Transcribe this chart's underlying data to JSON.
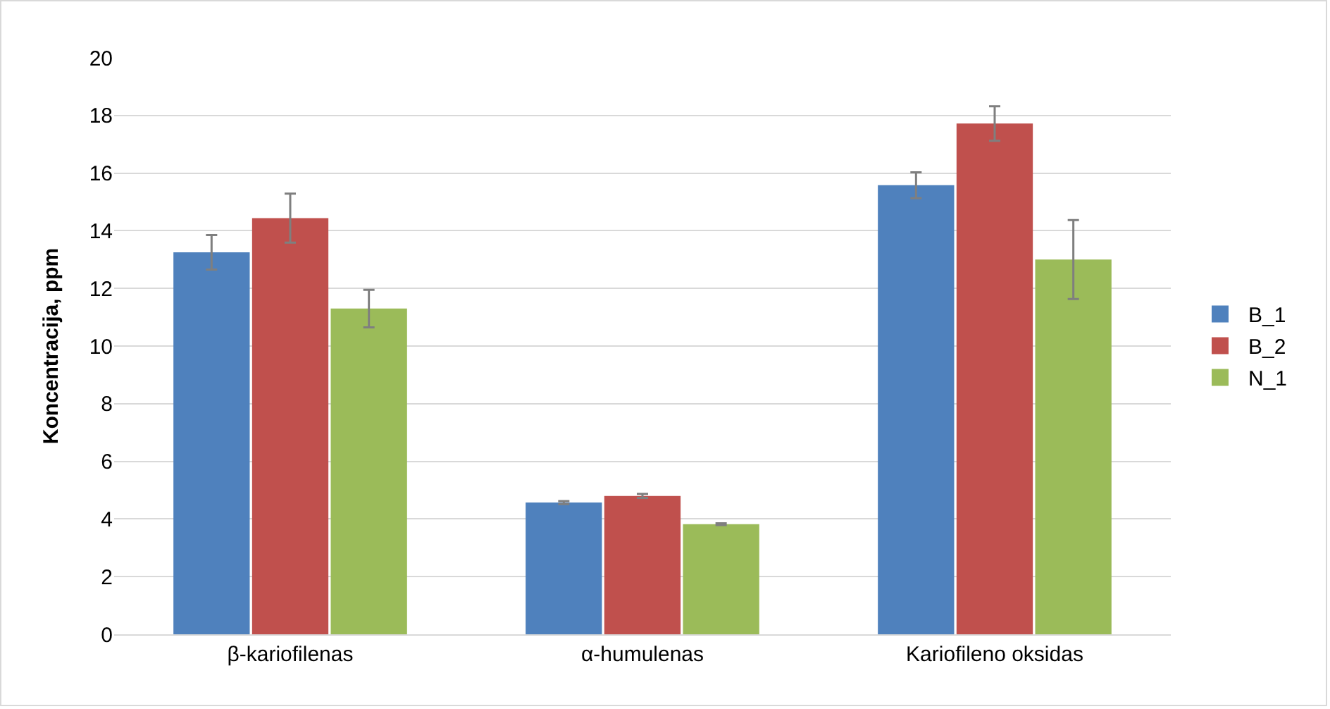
{
  "chart_data": {
    "type": "bar",
    "ylabel": "Koncentracija, ppm",
    "categories": [
      "β-kariofilenas",
      "α-humulenas",
      "Kariofileno oksidas"
    ],
    "series": [
      {
        "name": "B_1",
        "color": "#4f81bd",
        "values": [
          13.25,
          4.57,
          15.58
        ],
        "errors": [
          0.6,
          0.05,
          0.45
        ]
      },
      {
        "name": "B_2",
        "color": "#c0504d",
        "values": [
          14.44,
          4.8,
          17.72
        ],
        "errors": [
          0.85,
          0.07,
          0.6
        ]
      },
      {
        "name": "N_1",
        "color": "#9bbb59",
        "values": [
          11.3,
          3.82,
          13.0
        ],
        "errors": [
          0.65,
          0.03,
          1.37
        ]
      }
    ],
    "ylim": [
      0,
      20
    ],
    "yticks": [
      0,
      2,
      4,
      6,
      8,
      10,
      12,
      14,
      16,
      18,
      20
    ],
    "grid": "y",
    "legend": "right"
  }
}
